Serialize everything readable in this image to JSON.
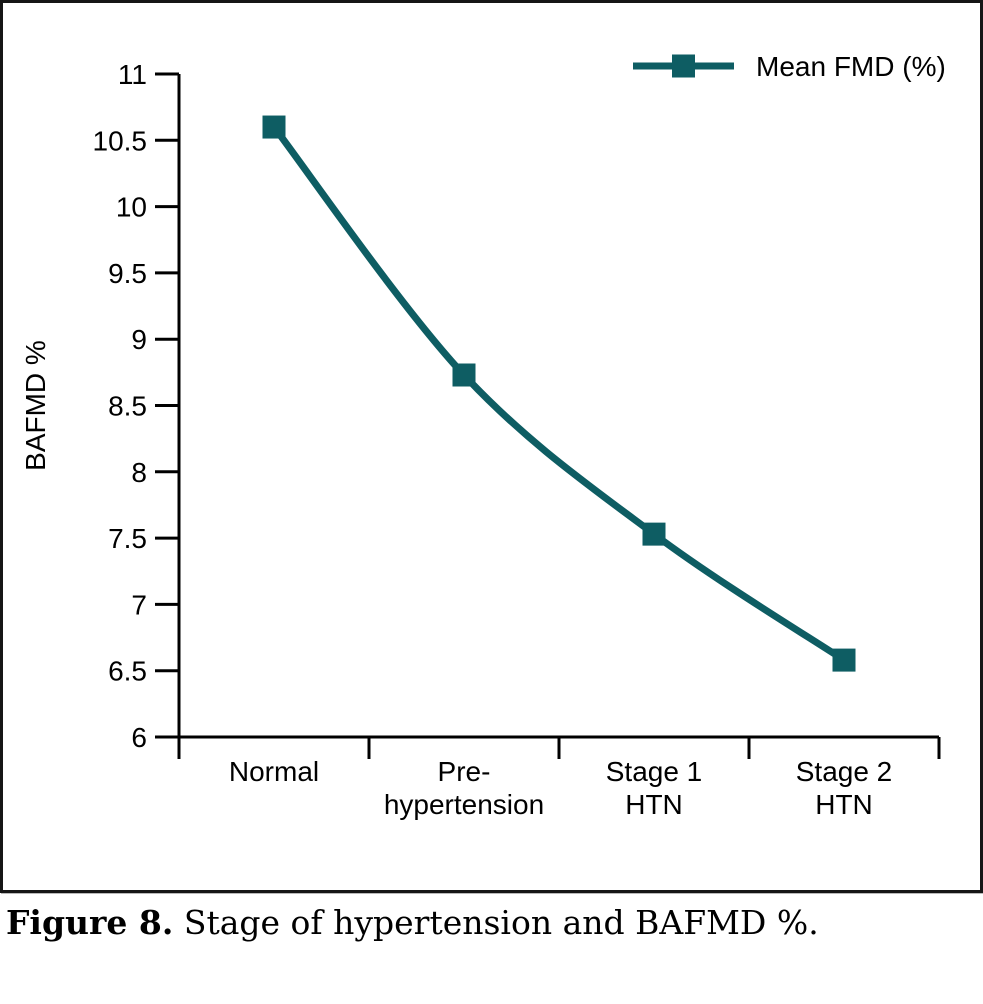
{
  "figure_caption": {
    "label": "Figure 8.",
    "text": "Stage of hypertension and BAFMD %."
  },
  "chart_data": {
    "type": "line",
    "title": "",
    "xlabel": "",
    "ylabel": "BAFMD %",
    "categories": [
      "Normal",
      "Pre-hypertension",
      "Stage 1 HTN",
      "Stage 2 HTN"
    ],
    "category_label_lines": [
      [
        "Normal"
      ],
      [
        "Pre-",
        "hypertension"
      ],
      [
        "Stage 1",
        "HTN"
      ],
      [
        "Stage 2",
        "HTN"
      ]
    ],
    "series": [
      {
        "name": "Mean FMD (%)",
        "values": [
          10.6,
          8.73,
          7.53,
          6.58
        ],
        "color": "#0e5d63",
        "marker": "square",
        "smooth": true
      }
    ],
    "ylim": [
      6,
      11
    ],
    "ytick_step": 0.5,
    "grid": false,
    "legend_position": "top-right",
    "axis_color": "#000000",
    "text_color": "#000000"
  }
}
